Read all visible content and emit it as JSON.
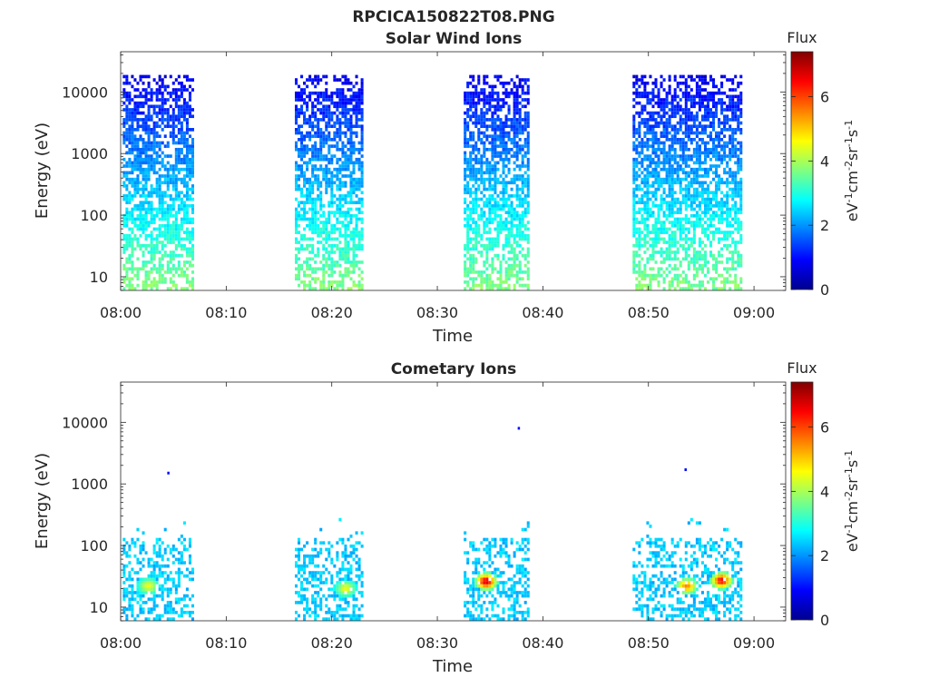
{
  "figure": {
    "title": "RPCICA150822T08.PNG"
  },
  "chart_data": [
    {
      "type": "heatmap",
      "title": "Solar Wind Ions",
      "xlabel": "Time",
      "ylabel": "Energy (eV)",
      "x_ticks": [
        "08:00",
        "08:10",
        "08:20",
        "08:30",
        "08:40",
        "08:50",
        "09:00"
      ],
      "x_range_minutes": [
        0,
        63
      ],
      "y_scale": "log",
      "y_ticks": [
        "10",
        "100",
        "1000",
        "10000"
      ],
      "ylim": [
        6,
        45000
      ],
      "colorbar": {
        "title": "Flux",
        "label": "eV^-1 cm^-2 sr^-1 s^-1",
        "ticks": [
          "0",
          "2",
          "4",
          "6"
        ],
        "range": [
          0,
          7.4
        ],
        "colormap": "jet"
      },
      "data_intervals_minutes": [
        [
          0.2,
          6.8
        ],
        [
          16.5,
          23.0
        ],
        [
          32.5,
          38.5
        ],
        [
          48.5,
          58.8
        ]
      ],
      "occupied_energy_range_eV": [
        6,
        20000
      ]
    },
    {
      "type": "heatmap",
      "title": "Cometary Ions",
      "xlabel": "Time",
      "ylabel": "Energy (eV)",
      "x_ticks": [
        "08:00",
        "08:10",
        "08:20",
        "08:30",
        "08:40",
        "08:50",
        "09:00"
      ],
      "x_range_minutes": [
        0,
        63
      ],
      "y_scale": "log",
      "y_ticks": [
        "10",
        "100",
        "1000",
        "10000"
      ],
      "ylim": [
        6,
        45000
      ],
      "colorbar": {
        "title": "Flux",
        "label": "eV^-1 cm^-2 sr^-1 s^-1",
        "ticks": [
          "0",
          "2",
          "4",
          "6"
        ],
        "range": [
          0,
          7.4
        ],
        "colormap": "jet"
      },
      "data_intervals_minutes": [
        [
          0.2,
          6.8
        ],
        [
          16.5,
          23.0
        ],
        [
          32.5,
          38.5
        ],
        [
          48.5,
          58.8
        ]
      ],
      "occupied_energy_range_eV": [
        6,
        280
      ],
      "peaks": [
        {
          "time_minutes": 2.5,
          "energy_eV": 22,
          "flux": 4.5
        },
        {
          "time_minutes": 21.2,
          "energy_eV": 20,
          "flux": 4.5
        },
        {
          "time_minutes": 34.5,
          "energy_eV": 26,
          "flux": 6.8
        },
        {
          "time_minutes": 53.5,
          "energy_eV": 22,
          "flux": 5.5
        },
        {
          "time_minutes": 56.8,
          "energy_eV": 27,
          "flux": 6.5
        }
      ],
      "isolated_points": [
        {
          "time_minutes": 4.5,
          "energy_eV": 1500
        },
        {
          "time_minutes": 37.7,
          "energy_eV": 8000
        },
        {
          "time_minutes": 53.5,
          "energy_eV": 1700
        }
      ]
    }
  ]
}
